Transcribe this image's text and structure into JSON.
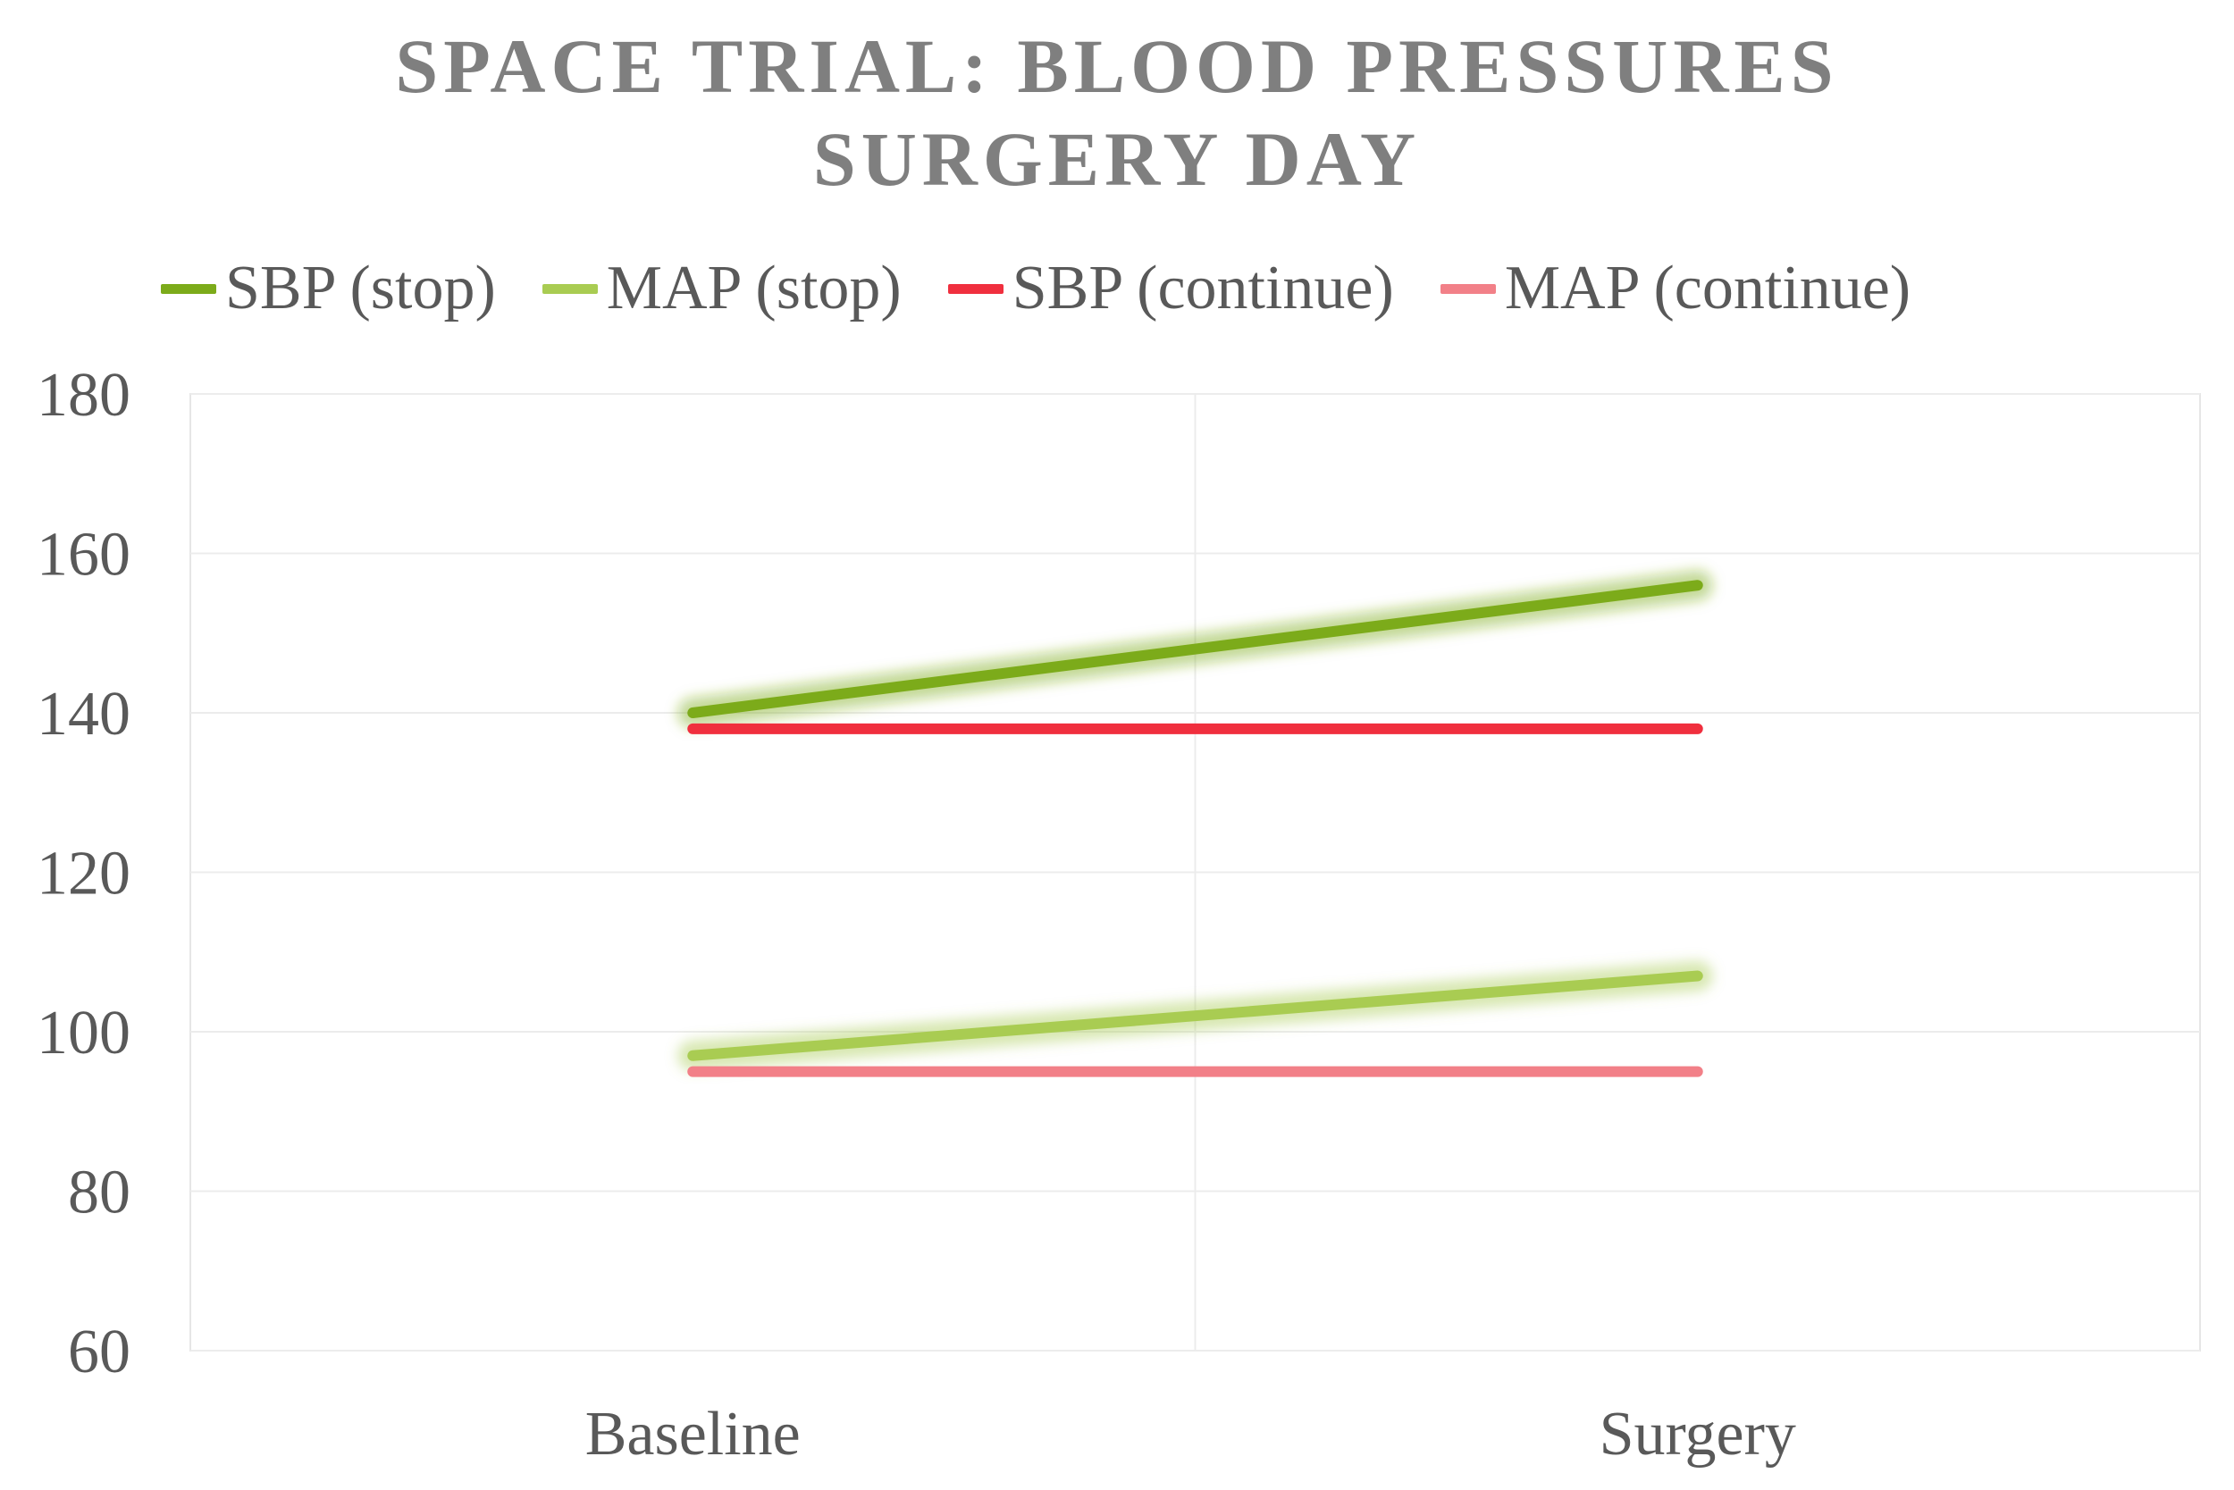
{
  "chart_data": {
    "type": "line",
    "title": "SPACE TRIAL: BLOOD PRESSURES",
    "subtitle": "SURGERY DAY",
    "categories": [
      "Baseline",
      "Surgery"
    ],
    "series": [
      {
        "name": "SBP (stop)",
        "values": [
          140,
          156
        ],
        "color": "#7cab1a"
      },
      {
        "name": "MAP (stop)",
        "values": [
          97,
          107
        ],
        "color": "#a9cc52"
      },
      {
        "name": "SBP (continue)",
        "values": [
          138,
          138
        ],
        "color": "#f02f3e"
      },
      {
        "name": "MAP (continue)",
        "values": [
          95,
          95
        ],
        "color": "#f28088"
      }
    ],
    "ylim": [
      60,
      180
    ],
    "yticks": [
      "180",
      "160",
      "140",
      "120",
      "100",
      "80",
      "60"
    ],
    "xlabel": "",
    "ylabel": "",
    "grid": true,
    "legend_position": "top"
  }
}
